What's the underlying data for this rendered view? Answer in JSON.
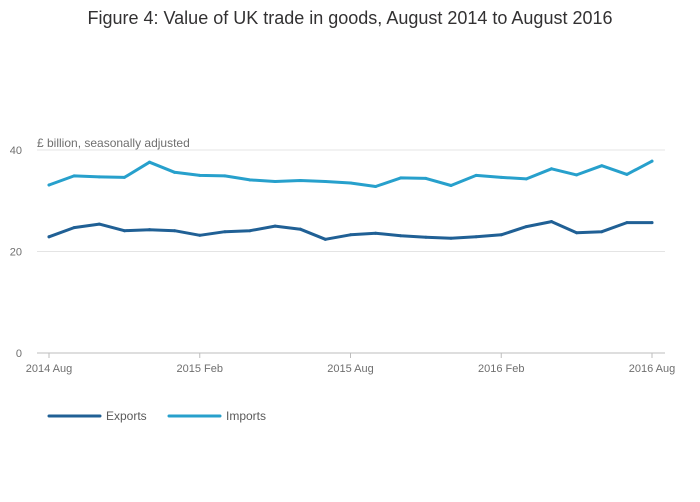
{
  "chart_data": {
    "type": "line",
    "title": "Figure 4: Value of UK trade in goods, August 2014 to August 2016",
    "ylabel": "£ billion, seasonally adjusted",
    "xlabel": "",
    "ylim": [
      0,
      40
    ],
    "y_ticks": [
      "0",
      "20",
      "40"
    ],
    "x": [
      "2014 Aug",
      "2014 Sep",
      "2014 Oct",
      "2014 Nov",
      "2014 Dec",
      "2015 Jan",
      "2015 Feb",
      "2015 Mar",
      "2015 Apr",
      "2015 May",
      "2015 Jun",
      "2015 Jul",
      "2015 Aug",
      "2015 Sep",
      "2015 Oct",
      "2015 Nov",
      "2015 Dec",
      "2016 Jan",
      "2016 Feb",
      "2016 Mar",
      "2016 Apr",
      "2016 May",
      "2016 Jun",
      "2016 Jul",
      "2016 Aug"
    ],
    "x_ticks": [
      {
        "label": "2014 Aug",
        "index": 0
      },
      {
        "label": "2015 Feb",
        "index": 6
      },
      {
        "label": "2015 Aug",
        "index": 12
      },
      {
        "label": "2016 Feb",
        "index": 18
      },
      {
        "label": "2016 Aug",
        "index": 24
      }
    ],
    "grid": true,
    "legend_position": "bottom-left",
    "series": [
      {
        "name": "Exports",
        "color": "#206095",
        "values": [
          22.9,
          24.7,
          25.4,
          24.1,
          24.3,
          24.1,
          23.2,
          23.9,
          24.1,
          25.0,
          24.4,
          22.4,
          23.3,
          23.6,
          23.1,
          22.8,
          22.6,
          22.9,
          23.3,
          24.9,
          25.9,
          23.7,
          23.9,
          25.7,
          25.7
        ]
      },
      {
        "name": "Imports",
        "color": "#27a0cc",
        "values": [
          33.1,
          34.9,
          34.7,
          34.6,
          37.6,
          35.6,
          35.0,
          34.9,
          34.1,
          33.8,
          34.0,
          33.8,
          33.5,
          32.8,
          34.5,
          34.4,
          33.0,
          35.0,
          34.6,
          34.3,
          36.3,
          35.1,
          36.9,
          35.2,
          37.8
        ]
      }
    ]
  }
}
